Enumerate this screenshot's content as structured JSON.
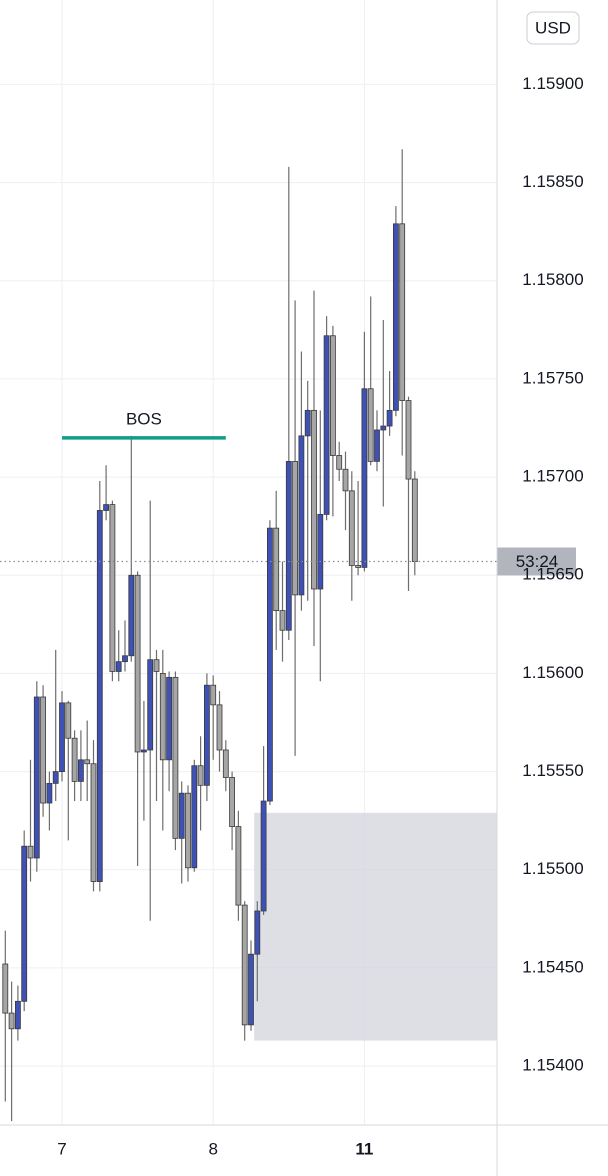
{
  "chart_data": {
    "type": "candlestick",
    "currency": "USD",
    "countdown": "53:24",
    "up_color": "#3f51b5",
    "down_color": "#a6a6a6",
    "categories": [
      null,
      null,
      null,
      null,
      null,
      null,
      null,
      null,
      null,
      "7",
      null,
      null,
      null,
      null,
      null,
      null,
      null,
      null,
      null,
      null,
      null,
      null,
      null,
      null,
      null,
      null,
      null,
      null,
      null,
      null,
      null,
      null,
      null,
      "8",
      null,
      null,
      null,
      null,
      null,
      null,
      null,
      null,
      null,
      null,
      null,
      null,
      null,
      null,
      null,
      null,
      null,
      null,
      null,
      null,
      null,
      null,
      null,
      "11",
      null,
      null,
      null,
      null,
      null,
      null,
      null,
      null
    ],
    "x_tick_bold": [
      57
    ],
    "open": [
      1.15452,
      1.15427,
      1.15419,
      1.15433,
      1.15512,
      1.15506,
      1.15588,
      1.15534,
      1.15544,
      1.1555,
      1.15585,
      1.15567,
      1.15545,
      1.15556,
      1.15554,
      1.15494,
      1.15683,
      1.15686,
      1.15601,
      1.15606,
      1.15609,
      1.1565,
      1.1556,
      1.15561,
      1.15607,
      1.156,
      1.15556,
      1.15598,
      1.15516,
      1.15539,
      1.15501,
      1.15553,
      1.15543,
      1.15594,
      1.15584,
      1.15561,
      1.15547,
      1.15522,
      1.15482,
      1.15421,
      1.15457,
      1.15479,
      1.15535,
      1.15674,
      1.15632,
      1.15622,
      1.15708,
      1.1564,
      1.15721,
      1.15734,
      1.15643,
      1.15681,
      1.15772,
      1.15711,
      1.15704,
      1.15693,
      1.15655,
      1.15654,
      1.15745,
      1.15708,
      1.15724,
      1.15726,
      1.15734,
      1.15829,
      1.15739,
      1.15699
    ],
    "high": [
      1.15469,
      1.15443,
      1.15441,
      1.1552,
      1.15556,
      1.15596,
      1.15594,
      1.1555,
      1.15612,
      1.15591,
      1.15586,
      1.15571,
      1.15571,
      1.15576,
      1.15566,
      1.15698,
      1.15706,
      1.15688,
      1.15622,
      1.15627,
      1.15721,
      1.15652,
      1.15586,
      1.15688,
      1.15612,
      1.15612,
      1.15601,
      1.15601,
      1.15545,
      1.15543,
      1.15556,
      1.15568,
      1.156,
      1.15599,
      1.15591,
      1.15566,
      1.1555,
      1.1553,
      1.15484,
      1.15464,
      1.15484,
      1.15563,
      1.15678,
      1.15693,
      1.15657,
      1.15858,
      1.1579,
      1.15764,
      1.15749,
      1.15795,
      1.15734,
      1.15782,
      1.15777,
      1.15718,
      1.15713,
      1.15703,
      1.15698,
      1.15774,
      1.15792,
      1.15734,
      1.1578,
      1.15754,
      1.15838,
      1.15867,
      1.15741,
      1.15703
    ],
    "low": [
      1.15382,
      1.15372,
      1.15413,
      1.15428,
      1.15494,
      1.15499,
      1.15527,
      1.1552,
      1.15535,
      1.15545,
      1.15515,
      1.15535,
      1.15535,
      1.15535,
      1.15489,
      1.15489,
      1.15678,
      1.15596,
      1.15596,
      1.15601,
      1.15606,
      1.15502,
      1.15525,
      1.15474,
      1.15535,
      1.1552,
      1.1554,
      1.1551,
      1.15493,
      1.15494,
      1.15499,
      1.1552,
      1.15535,
      1.15556,
      1.1555,
      1.1554,
      1.1551,
      1.15474,
      1.15413,
      1.15418,
      1.15433,
      1.15477,
      1.15533,
      1.15612,
      1.15606,
      1.15617,
      1.15558,
      1.15632,
      1.15637,
      1.15614,
      1.15596,
      1.15678,
      1.1568,
      1.15698,
      1.15673,
      1.15637,
      1.1565,
      1.15652,
      1.15706,
      1.15703,
      1.15685,
      1.15721,
      1.15731,
      1.15711,
      1.15642,
      1.1565
    ],
    "close": [
      1.15427,
      1.15419,
      1.15433,
      1.15512,
      1.15506,
      1.15588,
      1.15534,
      1.15544,
      1.1555,
      1.15585,
      1.15567,
      1.15545,
      1.15556,
      1.15554,
      1.15494,
      1.15683,
      1.15686,
      1.15601,
      1.15606,
      1.15609,
      1.1565,
      1.1556,
      1.15561,
      1.15607,
      1.15601,
      1.15556,
      1.15598,
      1.15516,
      1.15539,
      1.15501,
      1.15553,
      1.15543,
      1.15594,
      1.15584,
      1.15561,
      1.15547,
      1.15522,
      1.15482,
      1.15421,
      1.15457,
      1.15479,
      1.15535,
      1.15674,
      1.15632,
      1.15622,
      1.15708,
      1.1564,
      1.15721,
      1.15734,
      1.15643,
      1.15681,
      1.15772,
      1.15711,
      1.15704,
      1.15693,
      1.15655,
      1.15654,
      1.15745,
      1.15708,
      1.15724,
      1.15726,
      1.15734,
      1.15829,
      1.15739,
      1.15699,
      1.15657
    ],
    "ylim": [
      1.1537,
      1.15943
    ],
    "yticks": [
      {
        "value": 1.154,
        "label": "1.15400"
      },
      {
        "value": 1.1545,
        "label": "1.15450"
      },
      {
        "value": 1.155,
        "label": "1.15500"
      },
      {
        "value": 1.1555,
        "label": "1.15550"
      },
      {
        "value": 1.156,
        "label": "1.15600"
      },
      {
        "value": 1.1565,
        "label": "1.15650"
      },
      {
        "value": 1.157,
        "label": "1.15700"
      },
      {
        "value": 1.1575,
        "label": "1.15750"
      },
      {
        "value": 1.158,
        "label": "1.15800"
      },
      {
        "value": 1.1585,
        "label": "1.15850"
      },
      {
        "value": 1.159,
        "label": "1.15900"
      }
    ],
    "grid": true,
    "annotations": [
      {
        "text": "BOS",
        "y": 1.1572,
        "from_index": 9,
        "to_index": 35,
        "color": "#139c8a"
      }
    ],
    "zones": [
      {
        "from_index": 40,
        "top": 1.15529,
        "bottom": 1.15413,
        "color": "#d1d4dc"
      }
    ]
  }
}
